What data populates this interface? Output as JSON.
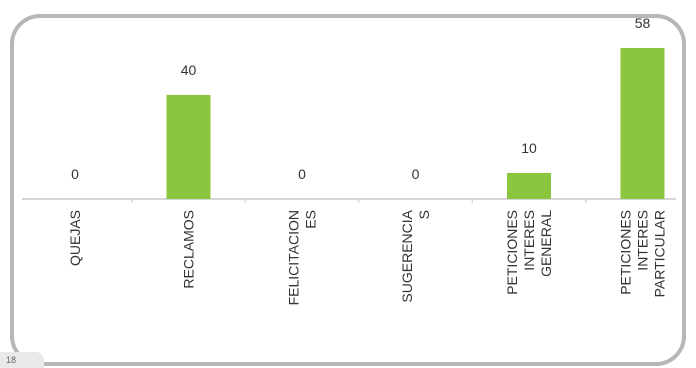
{
  "corner_label": "18",
  "chart_data": {
    "type": "bar",
    "title": "",
    "xlabel": "",
    "ylabel": "",
    "categories": [
      [
        "QUEJAS"
      ],
      [
        "RECLAMOS"
      ],
      [
        "FELICITACION",
        "ES"
      ],
      [
        "SUGERENCIA",
        "S"
      ],
      [
        "PETICIONES",
        "INTERES",
        "GENERAL"
      ],
      [
        "PETICIONES",
        "INTERES",
        "PARTICULAR"
      ]
    ],
    "values": [
      0,
      40,
      0,
      0,
      10,
      58
    ],
    "ylim": [
      0,
      58
    ],
    "bar_color": "#8cc63f",
    "grid": false
  }
}
